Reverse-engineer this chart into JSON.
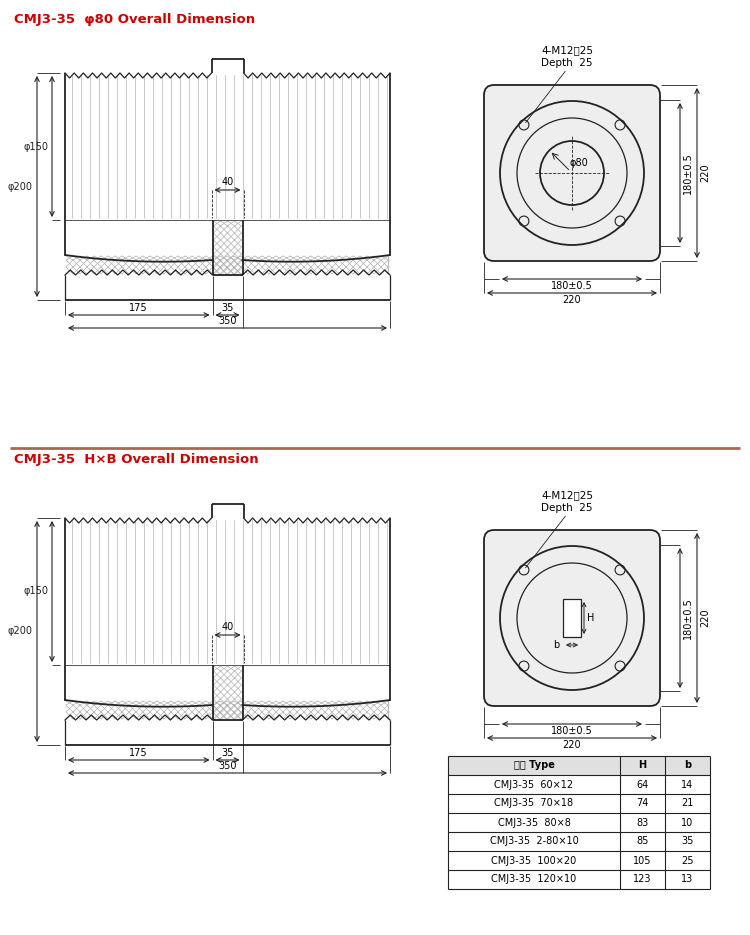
{
  "title1": "CMJ3-35  φ80 Overall Dimension",
  "title2": "CMJ3-35  H×B Overall Dimension",
  "red_color": "#CC0000",
  "line_color": "#222222",
  "bg_color": "#ffffff",
  "separator_color": "#AA6655",
  "table_headers": [
    "型号 Type",
    "H",
    "b"
  ],
  "table_rows": [
    [
      "CMJ3-35  60×12",
      "64",
      "14"
    ],
    [
      "CMJ3-35  70×18",
      "74",
      "21"
    ],
    [
      "CMJ3-35  80×8",
      "83",
      "10"
    ],
    [
      "CMJ3-35  2-80×10",
      "85",
      "35"
    ],
    [
      "CMJ3-35  100×20",
      "105",
      "25"
    ],
    [
      "CMJ3-35  120×10",
      "123",
      "13"
    ]
  ],
  "note_top": "4-M12淲25",
  "note_depth": "Depth  25",
  "phi80_label": "φ80",
  "dim_180pm": "180±0.5",
  "dim_220": "220",
  "dim_phi200": "φ200",
  "dim_phi150": "φ150",
  "dim_40": "40",
  "dim_175": "175",
  "dim_35": "35",
  "dim_350": "350",
  "dim_H": "H",
  "dim_b": "b"
}
